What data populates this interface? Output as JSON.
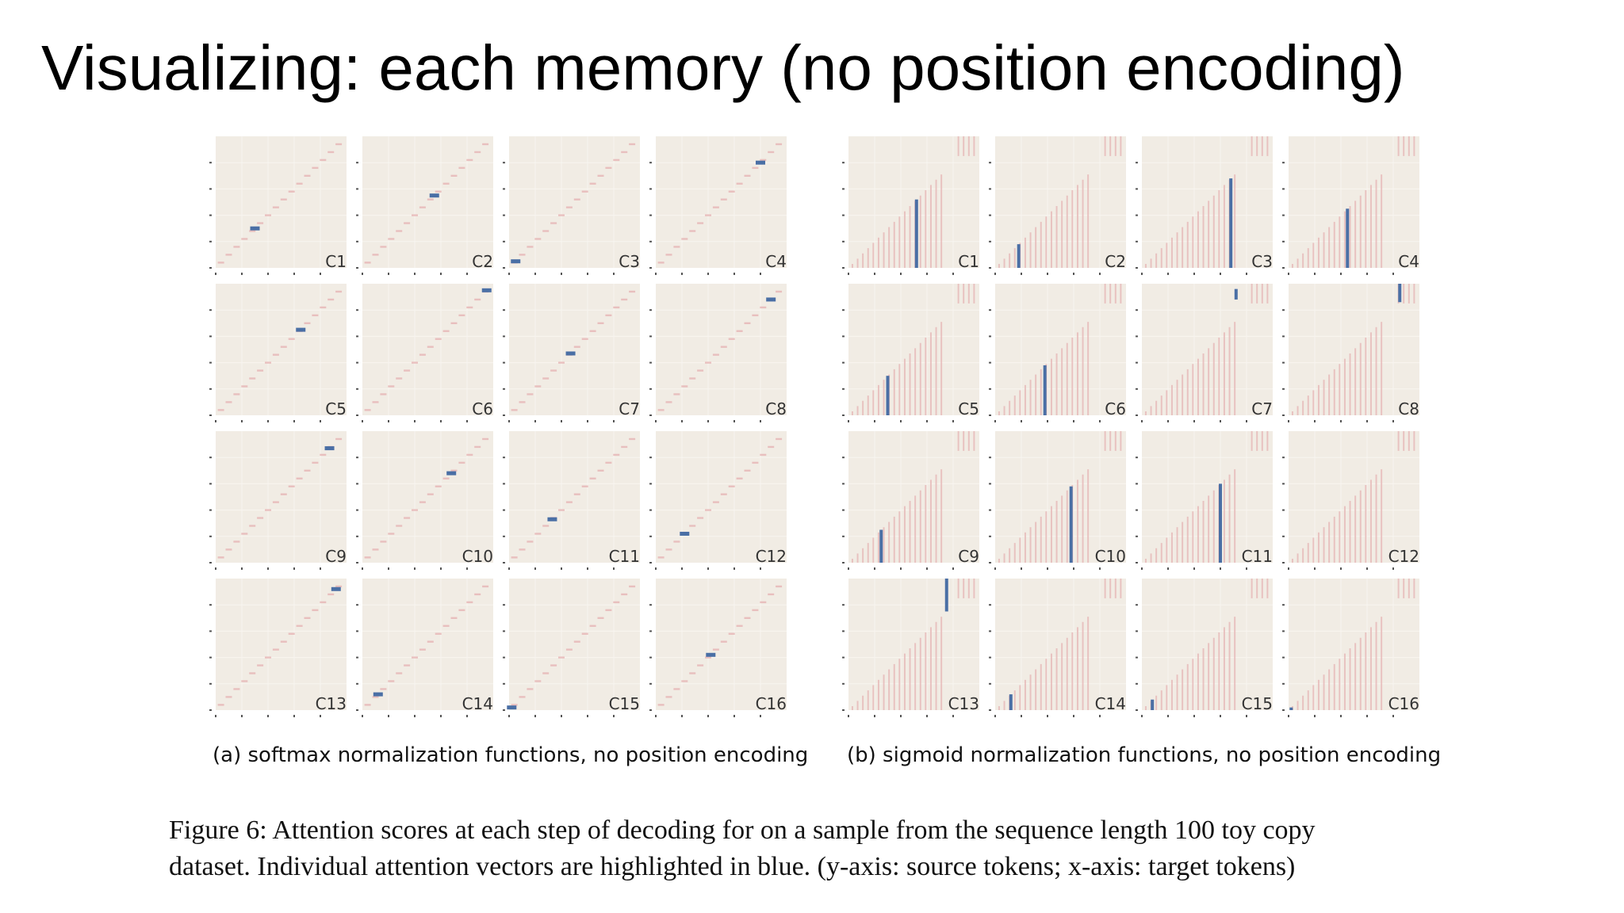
{
  "slide": {
    "title": "Visualizing: each memory (no position encoding)"
  },
  "figure": {
    "panel_a": {
      "caption": "(a) softmax normalization functions, no position encoding",
      "labels": [
        "C1",
        "C2",
        "C3",
        "C4",
        "C5",
        "C6",
        "C7",
        "C8",
        "C9",
        "C10",
        "C11",
        "C12",
        "C13",
        "C14",
        "C15",
        "C16"
      ]
    },
    "panel_b": {
      "caption": "(b) sigmoid normalization functions, no position encoding",
      "labels": [
        "C1",
        "C2",
        "C3",
        "C4",
        "C5",
        "C6",
        "C7",
        "C8",
        "C9",
        "C10",
        "C11",
        "C12",
        "C13",
        "C14",
        "C15",
        "C16"
      ]
    },
    "caption_lines": [
      "Figure 6: Attention scores at each step of decoding for on a sample from the sequence length 100 toy copy",
      "dataset. Individual attention vectors are highlighted in blue. (y-axis: source tokens; x-axis: target tokens)"
    ]
  },
  "chart_data": [
    {
      "type": "heatmap",
      "title": "(a) softmax normalization functions, no position encoding",
      "xlabel": "target tokens",
      "ylabel": "source tokens",
      "xlim": [
        0,
        100
      ],
      "ylim": [
        0,
        100
      ],
      "panels": [
        "C1",
        "C2",
        "C3",
        "C4",
        "C5",
        "C6",
        "C7",
        "C8",
        "C9",
        "C10",
        "C11",
        "C12",
        "C13",
        "C14",
        "C15",
        "C16"
      ],
      "highlight_x": [
        30,
        55,
        5,
        80,
        65,
        95,
        47,
        88,
        87,
        68,
        33,
        22,
        92,
        12,
        2,
        42
      ],
      "highlight_color": "#4a6fa5",
      "background_color": "#f1ece4",
      "diagonal_color": "#e6b4b4"
    },
    {
      "type": "heatmap",
      "title": "(b) sigmoid normalization functions, no position encoding",
      "xlabel": "target tokens",
      "ylabel": "source tokens",
      "xlim": [
        0,
        100
      ],
      "ylim": [
        0,
        100
      ],
      "panels": [
        "C1",
        "C2",
        "C3",
        "C4",
        "C5",
        "C6",
        "C7",
        "C8",
        "C9",
        "C10",
        "C11",
        "C12",
        "C13",
        "C14",
        "C15",
        "C16"
      ],
      "highlight_x": [
        52,
        18,
        68,
        45,
        30,
        38,
        72,
        85,
        25,
        58,
        60,
        0,
        75,
        12,
        8,
        2
      ],
      "highlight_y_range": [
        [
          0,
          52
        ],
        [
          0,
          18
        ],
        [
          0,
          68
        ],
        [
          0,
          45
        ],
        [
          0,
          30
        ],
        [
          0,
          38
        ],
        [
          88,
          96
        ],
        [
          86,
          100
        ],
        [
          0,
          25
        ],
        [
          0,
          58
        ],
        [
          0,
          60
        ],
        [
          0,
          0
        ],
        [
          75,
          100
        ],
        [
          0,
          12
        ],
        [
          0,
          8
        ],
        [
          0,
          2
        ]
      ],
      "highlight_color": "#4a6fa5",
      "background_color": "#f1ece4",
      "bar_color": "#e6b4b4"
    }
  ]
}
